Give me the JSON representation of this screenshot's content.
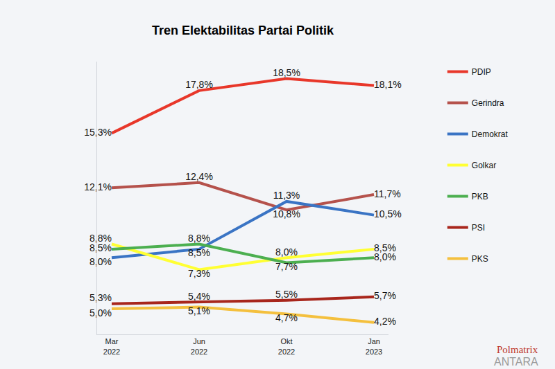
{
  "chart_data": {
    "type": "line",
    "title": "Tren Elektabilitas Partai Politik",
    "categories": [
      "Mar 2022",
      "Jun 2022",
      "Okt 2022",
      "Jan 2023"
    ],
    "series": [
      {
        "name": "PDIP",
        "color": "#e8372a",
        "values": [
          15.3,
          17.8,
          18.5,
          18.1
        ],
        "value_labels": [
          "15,3%",
          "17,8%",
          "18,5%",
          "18,1%"
        ]
      },
      {
        "name": "Gerindra",
        "color": "#b5524c",
        "values": [
          12.1,
          12.4,
          10.8,
          11.7
        ],
        "value_labels": [
          "12,1%",
          "12,4%",
          "10,8%",
          "11,7%"
        ]
      },
      {
        "name": "Demokrat",
        "color": "#3a74c4",
        "values": [
          8.0,
          8.5,
          11.3,
          10.5
        ],
        "value_labels": [
          "8,0%",
          "8,5%",
          "11,3%",
          "10,5%"
        ]
      },
      {
        "name": "Golkar",
        "color": "#ffff33",
        "values": [
          8.8,
          7.3,
          8.0,
          8.5
        ],
        "value_labels": [
          "8,8%",
          "7,3%",
          "8,0%",
          "8,5%"
        ]
      },
      {
        "name": "PKB",
        "color": "#4caf50",
        "values": [
          8.5,
          8.8,
          7.7,
          8.0
        ],
        "value_labels": [
          "8,5%",
          "8,8%",
          "7,7%",
          "8,0%"
        ]
      },
      {
        "name": "PSI",
        "color": "#a8261c",
        "values": [
          5.3,
          5.4,
          5.5,
          5.7
        ],
        "value_labels": [
          "5,3%",
          "5,4%",
          "5,5%",
          "5,7%"
        ]
      },
      {
        "name": "PKS",
        "color": "#f4c03e",
        "values": [
          5.0,
          5.1,
          4.7,
          4.2
        ],
        "value_labels": [
          "5,0%",
          "5,1%",
          "4,7%",
          "4,2%"
        ]
      }
    ],
    "ylim": [
      3.5,
      19.5
    ],
    "yticks": [],
    "grid": false,
    "legend": "right",
    "data_labels": true,
    "tick_labels": "x",
    "annotations": [
      "Polmatrix",
      "ANTARA"
    ]
  }
}
